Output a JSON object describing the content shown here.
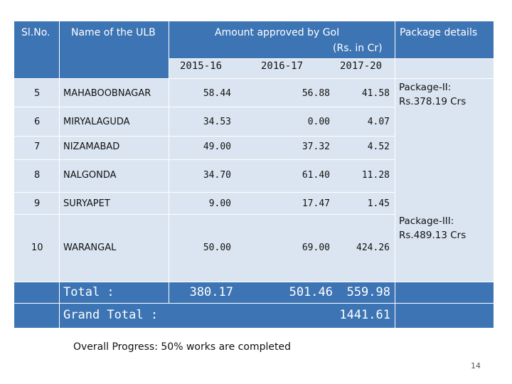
{
  "headers": {
    "sl_no": "Sl.No.",
    "ulb_name": "Name of the ULB",
    "amount_approved": "Amount approved by GoI",
    "unit": "(Rs. in Cr)",
    "package_details": "Package details",
    "years": [
      "2015-16",
      "2016-17",
      "2017-20"
    ]
  },
  "rows": [
    {
      "sl": "5",
      "name": "MAHABOOBNAGAR",
      "y1": "58.44",
      "y2": "56.88",
      "y3": "41.58"
    },
    {
      "sl": "6",
      "name": "MIRYALAGUDA",
      "y1": "34.53",
      "y2": "0.00",
      "y3": "4.07"
    },
    {
      "sl": "7",
      "name": "NIZAMABAD",
      "y1": "49.00",
      "y2": "37.32",
      "y3": "4.52"
    },
    {
      "sl": "8",
      "name": "NALGONDA",
      "y1": "34.70",
      "y2": "61.40",
      "y3": "11.28"
    },
    {
      "sl": "9",
      "name": "SURYAPET",
      "y1": "9.00",
      "y2": "17.47",
      "y3": "1.45"
    },
    {
      "sl": "10",
      "name": "WARANGAL",
      "y1": "50.00",
      "y2": "69.00",
      "y3": "424.26"
    }
  ],
  "packages": {
    "pkg2_title": "Package-II:",
    "pkg2_amount": "Rs.378.19 Crs",
    "pkg3_title": "Package-III:",
    "pkg3_amount": "Rs.489.13 Crs"
  },
  "totals": {
    "label": "Total :",
    "y1": "380.17",
    "y2": "501.46",
    "y3": "559.98",
    "grand_label": "Grand Total :",
    "grand_value": "1441.61"
  },
  "footer": {
    "progress": "Overall Progress: 50% works are completed",
    "page_number": "14"
  },
  "colors": {
    "header_blue": "#3d74b4",
    "light_band": "#dbe5f1"
  }
}
